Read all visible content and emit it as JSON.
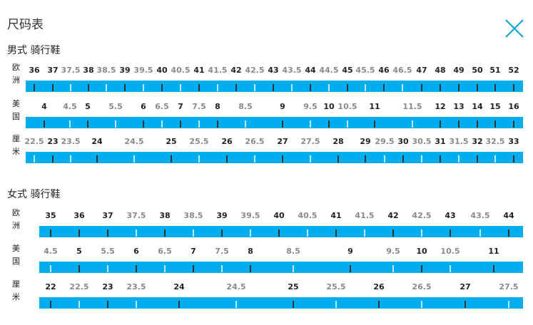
{
  "header": {
    "title": "尺码表"
  },
  "sections": [
    {
      "title": "男式 骑行鞋",
      "rows": [
        {
          "label": "欧洲",
          "sizes": [
            36,
            37,
            37.5,
            38,
            38.5,
            39,
            39.5,
            40,
            40.5,
            41,
            41.5,
            42,
            42.5,
            43,
            43.5,
            44,
            44.5,
            45,
            45.5,
            46,
            46.5,
            47,
            48,
            49,
            50,
            51,
            52
          ]
        },
        {
          "label": "美国",
          "sizes": [
            4,
            4.5,
            5,
            5.5,
            6,
            6.5,
            7,
            7.5,
            8,
            8.5,
            9,
            9.5,
            10,
            10.5,
            11,
            11.5,
            12,
            13,
            14,
            15,
            16
          ]
        },
        {
          "label": "厘米",
          "sizes": [
            22.5,
            23,
            23.5,
            24,
            24.5,
            25,
            25.5,
            26,
            26.5,
            27,
            27.5,
            28,
            29,
            29.5,
            30,
            30.5,
            31,
            31.5,
            32,
            32.5,
            33
          ]
        }
      ]
    },
    {
      "title": "女式 骑行鞋",
      "rows": [
        {
          "label": "欧洲",
          "sizes": [
            35,
            36,
            37,
            37.5,
            38,
            38.5,
            39,
            39.5,
            40,
            40.5,
            41,
            41.5,
            42,
            42.5,
            43,
            43.5,
            44
          ]
        },
        {
          "label": "美国",
          "sizes": [
            4.5,
            5,
            5.5,
            6,
            6.5,
            7,
            7.5,
            8,
            8.5,
            9,
            9.5,
            10,
            10.5,
            11
          ]
        },
        {
          "label": "厘米",
          "sizes": [
            22,
            22.5,
            23,
            23.5,
            24,
            24.5,
            25,
            25.5,
            26,
            26.5,
            27,
            27.5
          ]
        }
      ]
    }
  ]
}
